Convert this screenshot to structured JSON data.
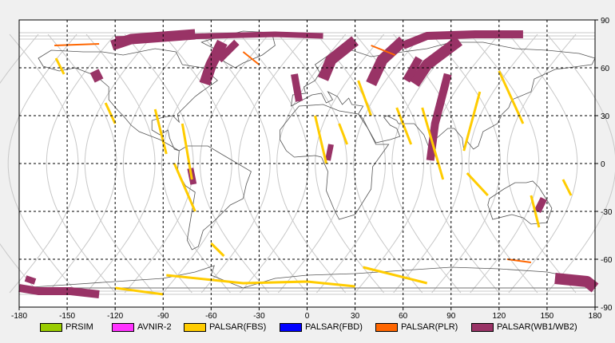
{
  "map": {
    "lon_ticks": [
      "-180",
      "-150",
      "-120",
      "-90",
      "-60",
      "-30",
      "0",
      "30",
      "60",
      "90",
      "120",
      "150",
      "180"
    ],
    "lat_ticks": [
      "90",
      "60",
      "30",
      "0",
      "-30",
      "-60",
      "-90"
    ],
    "lon_range": [
      -180,
      180
    ],
    "lat_range": [
      -90,
      90
    ],
    "grid": "dashed",
    "background_color": "#ffffff",
    "frame_color": "#f0f0f0"
  },
  "legend": [
    {
      "label": "PRSIM",
      "color": "#99cc00"
    },
    {
      "label": "AVNIR-2",
      "color": "#ff33ff"
    },
    {
      "label": "PALSAR(FBS)",
      "color": "#ffcc00"
    },
    {
      "label": "PALSAR(FBD)",
      "color": "#0000ff"
    },
    {
      "label": "PALSAR(PLR)",
      "color": "#ff6600"
    },
    {
      "label": "PALSAR(WB1/WB2)",
      "color": "#993366"
    }
  ]
}
